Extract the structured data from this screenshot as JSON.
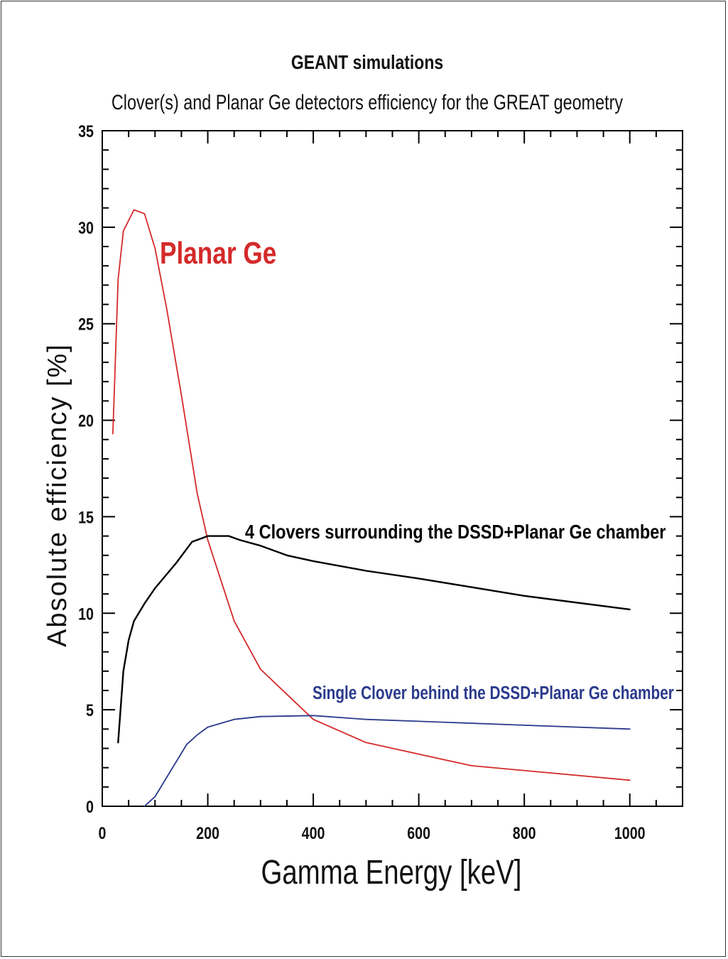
{
  "chart_data": {
    "type": "line",
    "title": "GEANT simulations",
    "subtitle": "Clover(s) and Planar Ge  detectors efficiency for the GREAT geometry",
    "xlabel": "Gamma Energy [keV]",
    "ylabel": "Absolute efficiency [%]",
    "xlim": [
      0,
      1100
    ],
    "ylim": [
      0,
      35
    ],
    "xticks": [
      0,
      200,
      400,
      600,
      800,
      1000
    ],
    "yticks": [
      0,
      5,
      10,
      15,
      20,
      25,
      30,
      35
    ],
    "grid": false,
    "series": [
      {
        "name": "Planar Ge",
        "color": "#d42a2a",
        "x": [
          20,
          30,
          40,
          60,
          80,
          100,
          122,
          150,
          180,
          200,
          250,
          300,
          400,
          500,
          700,
          1000
        ],
        "y": [
          19.3,
          27.3,
          29.8,
          30.9,
          30.7,
          28.9,
          25.8,
          21.3,
          16.2,
          13.8,
          9.6,
          7.1,
          4.5,
          3.3,
          2.1,
          1.35
        ]
      },
      {
        "name": "4 Clovers surrounding the DSSD+Planar Ge chamber",
        "color": "#000000",
        "x": [
          30,
          40,
          50,
          60,
          80,
          100,
          140,
          170,
          200,
          240,
          260,
          300,
          350,
          400,
          500,
          600,
          700,
          800,
          1000
        ],
        "y": [
          3.3,
          7.0,
          8.6,
          9.6,
          10.5,
          11.3,
          12.6,
          13.7,
          14.0,
          14.0,
          13.8,
          13.5,
          13.0,
          12.7,
          12.2,
          11.8,
          11.35,
          10.9,
          10.2
        ]
      },
      {
        "name": "Single Clover behind the DSSD+Planar Ge chamber",
        "color": "#2b3a8c",
        "x": [
          80,
          100,
          140,
          160,
          180,
          200,
          250,
          300,
          400,
          500,
          600,
          800,
          1000
        ],
        "y": [
          0.0,
          0.5,
          2.3,
          3.2,
          3.7,
          4.1,
          4.5,
          4.65,
          4.7,
          4.5,
          4.4,
          4.2,
          4.0
        ]
      }
    ]
  }
}
